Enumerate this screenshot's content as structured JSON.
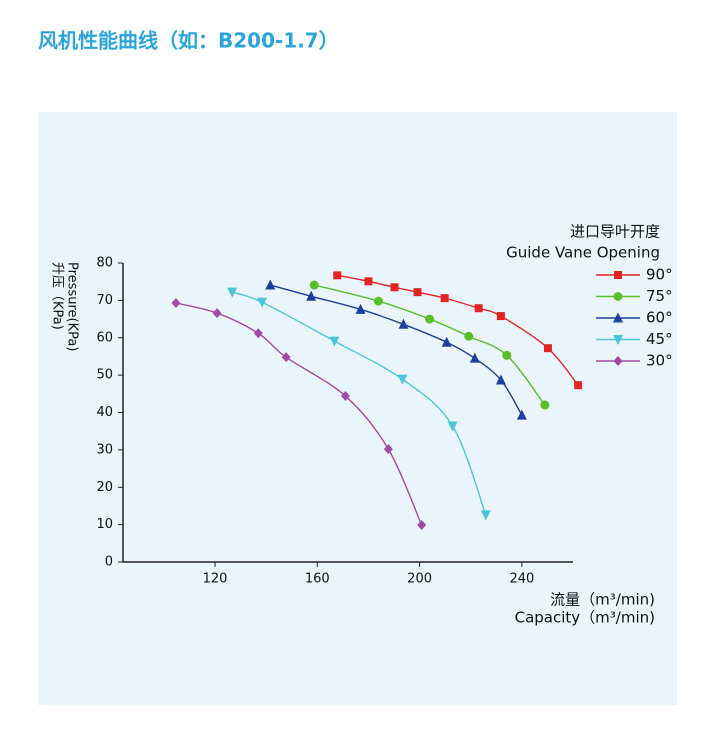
{
  "header": {
    "title": "风机性能曲线（如：B200-1.7）"
  },
  "chart_data": {
    "type": "line",
    "y_label_lines": [
      "Pressure(KPa)",
      "升压（KPa)"
    ],
    "x_label_lines": [
      "流量（m³/min)",
      "Capacity（m³/min)"
    ],
    "legend_title_lines": [
      "进口导叶开度",
      "Guide Vane Opening"
    ],
    "legend": "right",
    "xlim": [
      84,
      260
    ],
    "xticks": [
      120,
      160,
      200,
      240
    ],
    "ylim": [
      0,
      80
    ],
    "yticks": [
      0,
      10,
      20,
      30,
      40,
      50,
      60,
      70,
      80
    ],
    "series": [
      {
        "name": "90°",
        "color": "#e42424",
        "marker": "square",
        "x": [
          167.8,
          180,
          190.2,
          199.2,
          209.8,
          223.1,
          231.8,
          250.2,
          262
        ],
        "values": [
          76.7,
          75.1,
          73.5,
          72.2,
          70.6,
          67.9,
          65.8,
          57.2,
          47.3
        ]
      },
      {
        "name": "75°",
        "color": "#5cbf2a",
        "marker": "circle",
        "x": [
          158.8,
          183.9,
          203.9,
          219.2,
          234.1,
          249.0
        ],
        "values": [
          74.1,
          69.8,
          65.0,
          60.4,
          55.3,
          42.0
        ]
      },
      {
        "name": "60°",
        "color": "#1f3f9e",
        "marker": "triangle",
        "x": [
          141.6,
          157.6,
          176.9,
          193.7,
          210.6,
          221.6,
          231.8,
          240
        ],
        "values": [
          74.1,
          71.1,
          67.6,
          63.6,
          58.8,
          54.5,
          48.7,
          39.3
        ]
      },
      {
        "name": "45°",
        "color": "#4cc6d6",
        "marker": "triangle-down",
        "x": [
          126.7,
          138.4,
          166.7,
          193.3,
          212.9,
          225.9
        ],
        "values": [
          72.2,
          69.5,
          59.1,
          48.9,
          36.4,
          12.6
        ]
      },
      {
        "name": "30°",
        "color": "#a24ca8",
        "marker": "diamond",
        "x": [
          104.7,
          120.8,
          136.9,
          147.8,
          171,
          187.8,
          200.8
        ],
        "values": [
          69.3,
          66.6,
          61.2,
          54.8,
          44.4,
          30.2,
          9.9
        ]
      }
    ]
  }
}
